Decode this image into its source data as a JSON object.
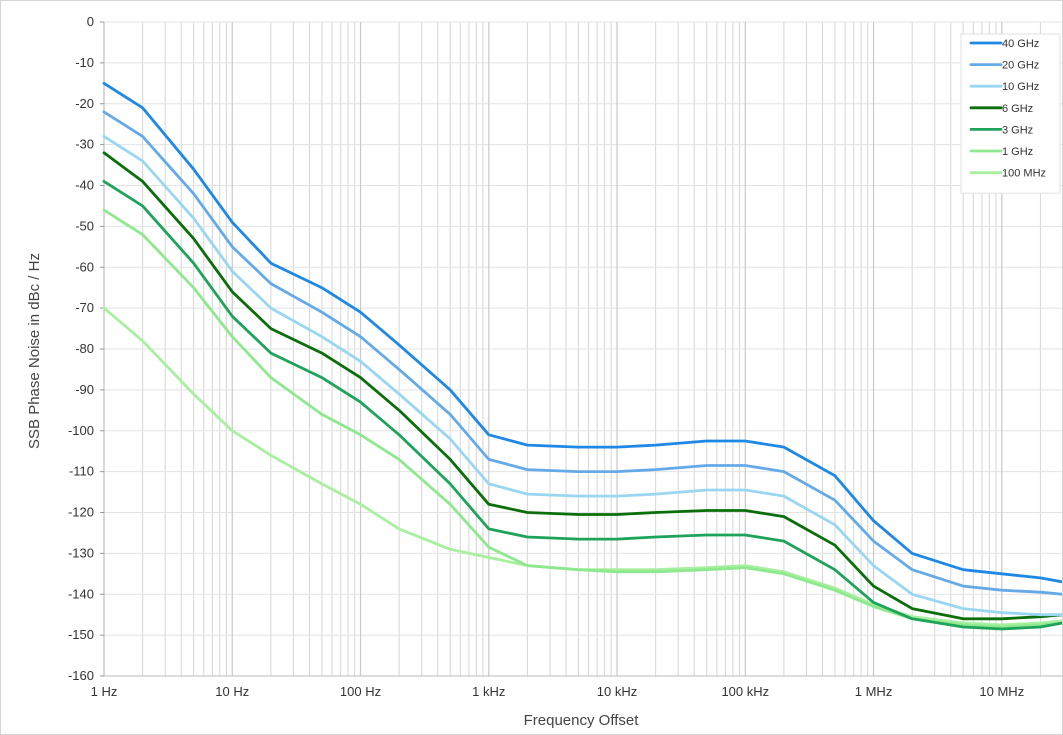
{
  "chart_data": {
    "type": "line",
    "xlabel": "Frequency Offset",
    "ylabel": "SSB Phase Noise in dBc / Hz",
    "x_scale": "log",
    "xlim": [
      1,
      30000000
    ],
    "ylim": [
      -160,
      0
    ],
    "grid": true,
    "legend_position": "top-right",
    "x_tick_labels": [
      "1 Hz",
      "10 Hz",
      "100 Hz",
      "1 kHz",
      "10 kHz",
      "100 kHz",
      "1 MHz",
      "10 MHz"
    ],
    "x_tick_values": [
      1,
      10,
      100,
      1000,
      10000,
      100000,
      1000000,
      10000000
    ],
    "y_tick_labels": [
      "0",
      "-10",
      "-20",
      "-30",
      "-40",
      "-50",
      "-60",
      "-70",
      "-80",
      "-90",
      "-100",
      "-110",
      "-120",
      "-130",
      "-140",
      "-150",
      "-160"
    ],
    "y_tick_values": [
      0,
      -10,
      -20,
      -30,
      -40,
      -50,
      -60,
      -70,
      -80,
      -90,
      -100,
      -110,
      -120,
      -130,
      -140,
      -150,
      -160
    ],
    "series": [
      {
        "name": "40 GHz",
        "color": "#1e88e5",
        "x": [
          1,
          2,
          5,
          10,
          20,
          50,
          100,
          200,
          500,
          1000,
          2000,
          5000,
          10000,
          20000,
          50000,
          100000,
          200000,
          500000,
          1000000,
          2000000,
          5000000,
          10000000,
          20000000,
          30000000
        ],
        "y": [
          -15,
          -21,
          -36,
          -49,
          -59,
          -65,
          -71,
          -79,
          -90,
          -101,
          -103.5,
          -104,
          -104,
          -103.5,
          -102.5,
          -102.5,
          -104,
          -111,
          -122,
          -130,
          -134,
          -135,
          -136,
          -137
        ]
      },
      {
        "name": "20 GHz",
        "color": "#64aae8",
        "x": [
          1,
          2,
          5,
          10,
          20,
          50,
          100,
          200,
          500,
          1000,
          2000,
          5000,
          10000,
          20000,
          50000,
          100000,
          200000,
          500000,
          1000000,
          2000000,
          5000000,
          10000000,
          20000000,
          30000000
        ],
        "y": [
          -22,
          -28,
          -42,
          -55,
          -64,
          -71,
          -77,
          -85,
          -96,
          -107,
          -109.5,
          -110,
          -110,
          -109.5,
          -108.5,
          -108.5,
          -110,
          -117,
          -127,
          -134,
          -138,
          -139,
          -139.5,
          -140
        ]
      },
      {
        "name": "10 GHz",
        "color": "#99d6f2",
        "x": [
          1,
          2,
          5,
          10,
          20,
          50,
          100,
          200,
          500,
          1000,
          2000,
          5000,
          10000,
          20000,
          50000,
          100000,
          200000,
          500000,
          1000000,
          2000000,
          5000000,
          10000000,
          20000000,
          30000000
        ],
        "y": [
          -28,
          -34,
          -48,
          -61,
          -70,
          -77,
          -83,
          -91,
          -102,
          -113,
          -115.5,
          -116,
          -116,
          -115.5,
          -114.5,
          -114.5,
          -116,
          -123,
          -133,
          -140,
          -143.5,
          -144.5,
          -145,
          -145
        ]
      },
      {
        "name": "6 GHz",
        "color": "#0a6e0a",
        "x": [
          1,
          2,
          5,
          10,
          20,
          50,
          100,
          200,
          500,
          1000,
          2000,
          5000,
          10000,
          20000,
          50000,
          100000,
          200000,
          500000,
          1000000,
          2000000,
          5000000,
          10000000,
          20000000,
          30000000
        ],
        "y": [
          -32,
          -39,
          -53,
          -66,
          -75,
          -81,
          -87,
          -95,
          -107,
          -118,
          -120,
          -120.5,
          -120.5,
          -120,
          -119.5,
          -119.5,
          -121,
          -128,
          -138,
          -143.5,
          -146,
          -146,
          -145.5,
          -145
        ]
      },
      {
        "name": "3 GHz",
        "color": "#1ea35a",
        "x": [
          1,
          2,
          5,
          10,
          20,
          50,
          100,
          200,
          500,
          1000,
          2000,
          5000,
          10000,
          20000,
          50000,
          100000,
          200000,
          500000,
          1000000,
          2000000,
          5000000,
          10000000,
          20000000,
          30000000
        ],
        "y": [
          -39,
          -45,
          -59,
          -72,
          -81,
          -87,
          -93,
          -101,
          -113,
          -124,
          -126,
          -126.5,
          -126.5,
          -126,
          -125.5,
          -125.5,
          -127,
          -134,
          -142,
          -146,
          -148,
          -148.5,
          -148,
          -147
        ]
      },
      {
        "name": "1 GHz",
        "color": "#8ee88e",
        "x": [
          1,
          2,
          5,
          10,
          20,
          50,
          100,
          200,
          500,
          1000,
          2000,
          5000,
          10000,
          20000,
          50000,
          100000,
          200000,
          500000,
          1000000,
          2000000,
          5000000,
          10000000,
          20000000,
          30000000
        ],
        "y": [
          -46,
          -52,
          -65,
          -77,
          -87,
          -96,
          -101,
          -107,
          -118,
          -128.5,
          -133,
          -134,
          -134.5,
          -134.5,
          -134,
          -133.5,
          -135,
          -139,
          -143,
          -146,
          -147.5,
          -148,
          -147.5,
          -147
        ]
      },
      {
        "name": "100 MHz",
        "color": "#a8f0a0",
        "x": [
          1,
          2,
          5,
          10,
          20,
          50,
          100,
          200,
          500,
          1000,
          2000,
          5000,
          10000,
          20000,
          50000,
          100000,
          200000,
          500000,
          1000000,
          2000000,
          5000000,
          10000000,
          20000000,
          30000000
        ],
        "y": [
          -70,
          -78,
          -91,
          -100,
          -106,
          -113,
          -118,
          -124,
          -129,
          -131,
          -133,
          -134,
          -134,
          -134,
          -133.5,
          -133,
          -134.5,
          -138.5,
          -142.5,
          -145.5,
          -147,
          -147.5,
          -147,
          -146.5
        ]
      }
    ]
  }
}
